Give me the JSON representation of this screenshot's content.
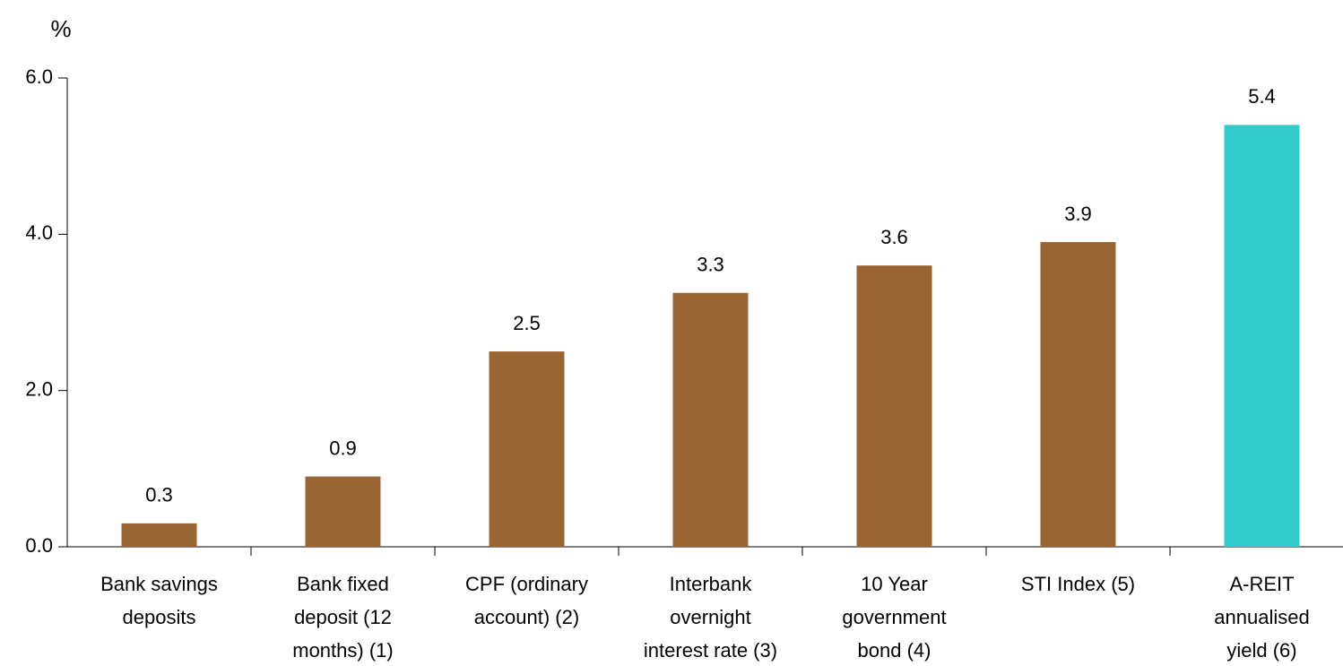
{
  "chart_data": {
    "type": "bar",
    "ylabel": "%",
    "categories": [
      "Bank savings\ndeposits",
      "Bank fixed\ndeposit (12\nmonths) (1)",
      "CPF (ordinary\naccount) (2)",
      "Interbank\novernight\ninterest rate (3)",
      "10 Year\ngovernment\nbond (4)",
      "STI Index (5)",
      "A-REIT\nannualised\nyield (6)"
    ],
    "values": [
      0.3,
      0.9,
      2.5,
      3.25,
      3.6,
      3.9,
      5.4
    ],
    "value_labels": [
      "0.3",
      "0.9",
      "2.5",
      "3.3",
      "3.6",
      "3.9",
      "5.4"
    ],
    "colors": [
      "#996633",
      "#996633",
      "#996633",
      "#996633",
      "#996633",
      "#996633",
      "#33cccc"
    ],
    "ylim": [
      0,
      6
    ],
    "yticks": [
      {
        "value": 0,
        "label": "0.0"
      },
      {
        "value": 2,
        "label": "2.0"
      },
      {
        "value": 4,
        "label": "4.0"
      },
      {
        "value": 6,
        "label": "6.0"
      }
    ],
    "grid": false
  }
}
